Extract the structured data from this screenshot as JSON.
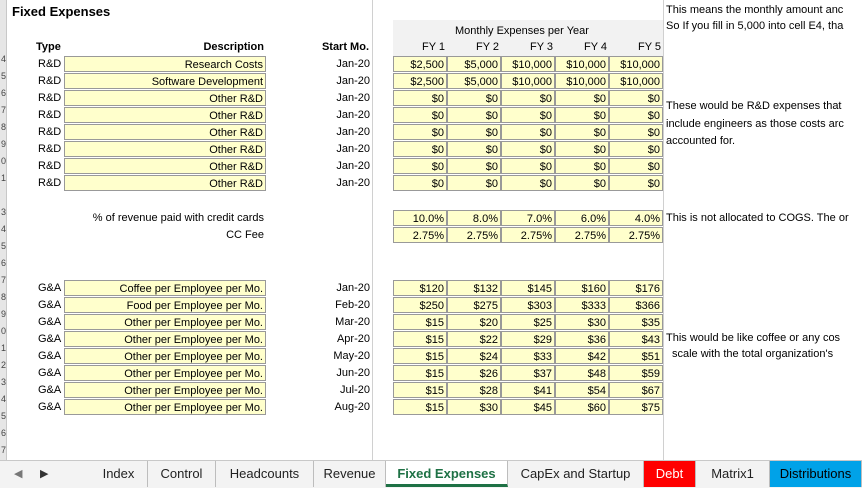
{
  "sheet_title": "Fixed Expenses",
  "notes": {
    "top_1": "This means the monthly amount anc",
    "top_2": "So If you fill in 5,000 into cell E4, tha",
    "rd_1": "These would be R&D expenses that",
    "rd_2": "include engineers as those costs arc",
    "rd_3": "accounted for.",
    "cc": "This is not allocated to COGS. The or",
    "ga_1": "This would be like coffee or any cos",
    "ga_2": "scale with the total organization's"
  },
  "headers": {
    "group": "Monthly Expenses per Year",
    "type": "Type",
    "description": "Description",
    "start": "Start Mo.",
    "fy": [
      "FY 1",
      "FY 2",
      "FY 3",
      "FY 4",
      "FY 5"
    ]
  },
  "row_numbers": [
    "",
    "",
    "",
    "4",
    "5",
    "6",
    "7",
    "8",
    "9",
    "0",
    "1",
    "",
    "3",
    "4",
    "5",
    "6",
    "7",
    "8",
    "9",
    "0",
    "1",
    "2",
    "3",
    "4",
    "5",
    "6",
    "7"
  ],
  "rd_rows": [
    {
      "type": "R&D",
      "desc": "Research Costs",
      "start": "Jan-20",
      "vals": [
        "$2,500",
        "$5,000",
        "$10,000",
        "$10,000",
        "$10,000"
      ]
    },
    {
      "type": "R&D",
      "desc": "Software Development",
      "start": "Jan-20",
      "vals": [
        "$2,500",
        "$5,000",
        "$10,000",
        "$10,000",
        "$10,000"
      ]
    },
    {
      "type": "R&D",
      "desc": "Other R&D",
      "start": "Jan-20",
      "vals": [
        "$0",
        "$0",
        "$0",
        "$0",
        "$0"
      ]
    },
    {
      "type": "R&D",
      "desc": "Other R&D",
      "start": "Jan-20",
      "vals": [
        "$0",
        "$0",
        "$0",
        "$0",
        "$0"
      ]
    },
    {
      "type": "R&D",
      "desc": "Other R&D",
      "start": "Jan-20",
      "vals": [
        "$0",
        "$0",
        "$0",
        "$0",
        "$0"
      ]
    },
    {
      "type": "R&D",
      "desc": "Other R&D",
      "start": "Jan-20",
      "vals": [
        "$0",
        "$0",
        "$0",
        "$0",
        "$0"
      ]
    },
    {
      "type": "R&D",
      "desc": "Other R&D",
      "start": "Jan-20",
      "vals": [
        "$0",
        "$0",
        "$0",
        "$0",
        "$0"
      ]
    },
    {
      "type": "R&D",
      "desc": "Other R&D",
      "start": "Jan-20",
      "vals": [
        "$0",
        "$0",
        "$0",
        "$0",
        "$0"
      ]
    }
  ],
  "cc_rows": [
    {
      "desc": "% of revenue paid with credit cards",
      "vals": [
        "10.0%",
        "8.0%",
        "7.0%",
        "6.0%",
        "4.0%"
      ]
    },
    {
      "desc": "CC Fee",
      "vals": [
        "2.75%",
        "2.75%",
        "2.75%",
        "2.75%",
        "2.75%"
      ]
    }
  ],
  "ga_rows": [
    {
      "type": "G&A",
      "desc": "Coffee per Employee per Mo.",
      "start": "Jan-20",
      "vals": [
        "$120",
        "$132",
        "$145",
        "$160",
        "$176"
      ]
    },
    {
      "type": "G&A",
      "desc": "Food per Employee per Mo.",
      "start": "Feb-20",
      "vals": [
        "$250",
        "$275",
        "$303",
        "$333",
        "$366"
      ]
    },
    {
      "type": "G&A",
      "desc": "Other per Employee per Mo.",
      "start": "Mar-20",
      "vals": [
        "$15",
        "$20",
        "$25",
        "$30",
        "$35"
      ]
    },
    {
      "type": "G&A",
      "desc": "Other per Employee per Mo.",
      "start": "Apr-20",
      "vals": [
        "$15",
        "$22",
        "$29",
        "$36",
        "$43"
      ]
    },
    {
      "type": "G&A",
      "desc": "Other per Employee per Mo.",
      "start": "May-20",
      "vals": [
        "$15",
        "$24",
        "$33",
        "$42",
        "$51"
      ]
    },
    {
      "type": "G&A",
      "desc": "Other per Employee per Mo.",
      "start": "Jun-20",
      "vals": [
        "$15",
        "$26",
        "$37",
        "$48",
        "$59"
      ]
    },
    {
      "type": "G&A",
      "desc": "Other per Employee per Mo.",
      "start": "Jul-20",
      "vals": [
        "$15",
        "$28",
        "$41",
        "$54",
        "$67"
      ]
    },
    {
      "type": "G&A",
      "desc": "Other per Employee per Mo.",
      "start": "Aug-20",
      "vals": [
        "$15",
        "$30",
        "$45",
        "$60",
        "$75"
      ]
    }
  ],
  "tabs": [
    {
      "label": "Index",
      "style": "normal"
    },
    {
      "label": "Control",
      "style": "normal"
    },
    {
      "label": "Headcounts",
      "style": "normal"
    },
    {
      "label": "Revenue",
      "style": "normal"
    },
    {
      "label": "Fixed Expenses",
      "style": "active"
    },
    {
      "label": "CapEx and Startup",
      "style": "normal"
    },
    {
      "label": "Debt",
      "style": "red"
    },
    {
      "label": "Matrix1",
      "style": "normal"
    },
    {
      "label": "Distributions",
      "style": "blue"
    }
  ],
  "colors": {
    "input_fill": "#ffffcc",
    "active_tab": "#1e7145",
    "debt_tab": "#ff0000",
    "dist_tab": "#00a2e8"
  }
}
